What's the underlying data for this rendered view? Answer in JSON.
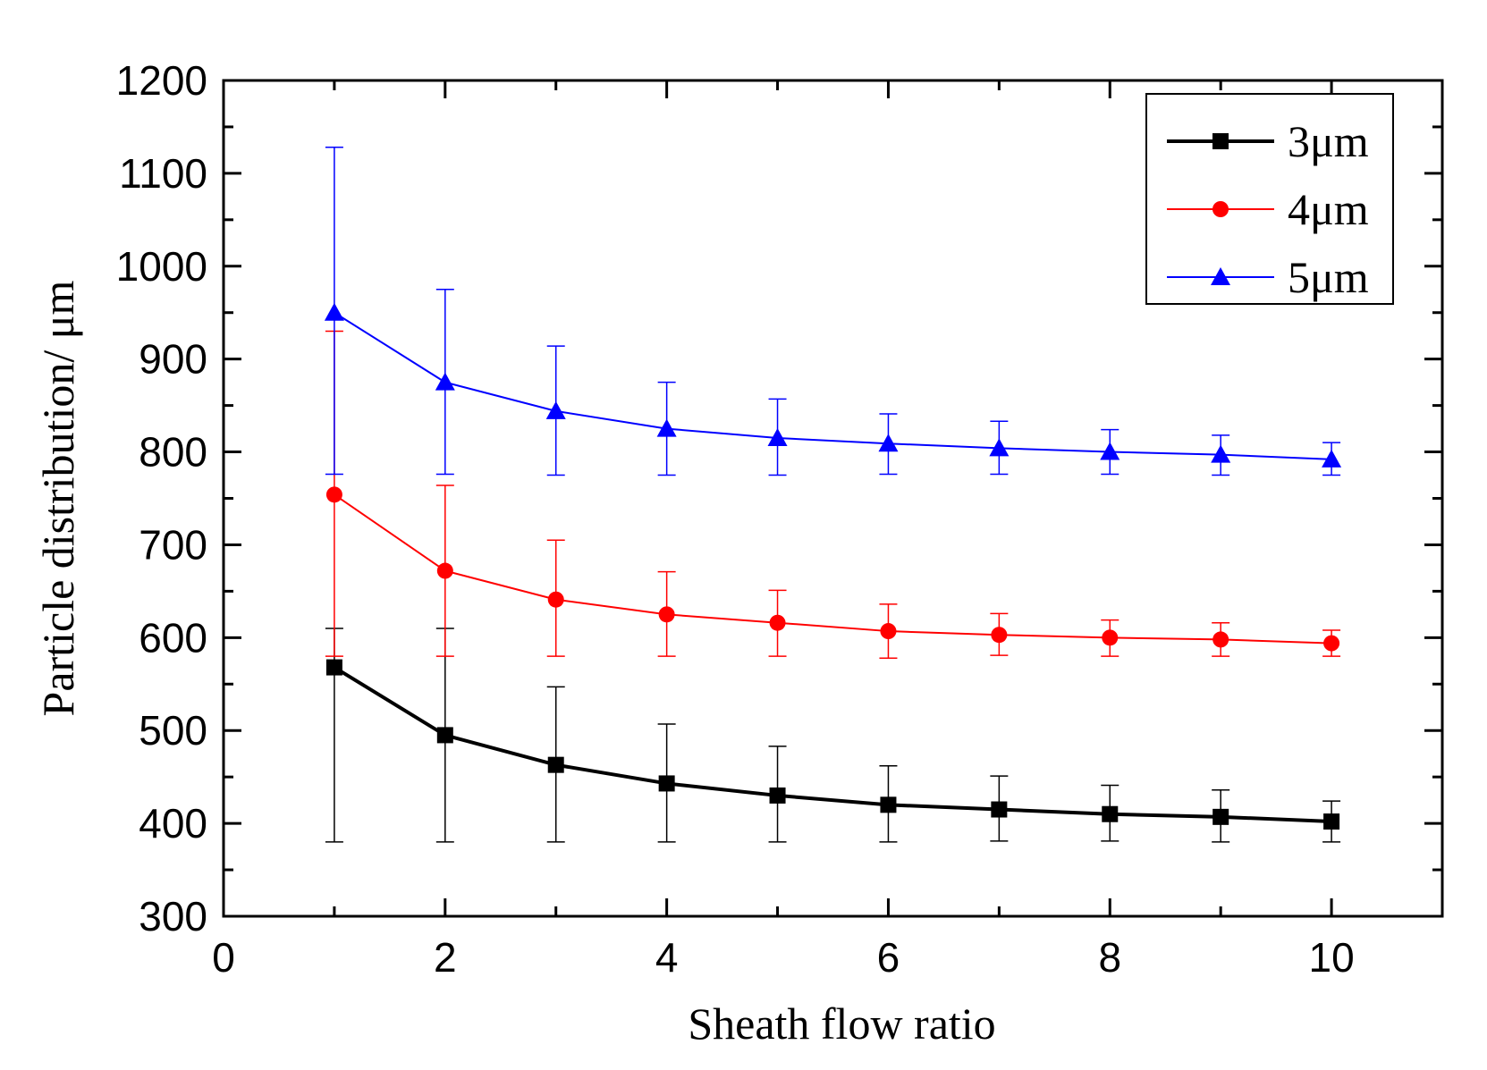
{
  "chart_data": {
    "type": "line",
    "title": "",
    "xlabel": "Sheath flow ratio",
    "ylabel": "Particle distribution/ μm",
    "xlim": [
      0,
      11
    ],
    "ylim": [
      300,
      1200
    ],
    "x_ticks": [
      0,
      2,
      4,
      6,
      8,
      10
    ],
    "y_ticks": [
      300,
      400,
      500,
      600,
      700,
      800,
      900,
      1000,
      1100,
      1200
    ],
    "x_tick_labels": [
      "0",
      "2",
      "4",
      "6",
      "8",
      "10"
    ],
    "y_tick_labels": [
      "300",
      "400",
      "500",
      "600",
      "700",
      "800",
      "900",
      "1000",
      "1100",
      "1200"
    ],
    "legend_position": "top-right",
    "x": [
      1,
      2,
      3,
      4,
      5,
      6,
      7,
      8,
      9,
      10
    ],
    "series": [
      {
        "name": "3μm",
        "color": "#000000",
        "marker": "square",
        "values": [
          568,
          495,
          463,
          443,
          430,
          420,
          415,
          410,
          407,
          402
        ],
        "err_low": [
          380,
          380,
          380,
          380,
          380,
          380,
          381,
          381,
          380,
          380
        ],
        "err_high": [
          610,
          610,
          547,
          507,
          483,
          462,
          451,
          441,
          436,
          424
        ]
      },
      {
        "name": "4μm",
        "color": "#ff0000",
        "marker": "circle",
        "values": [
          754,
          672,
          641,
          625,
          616,
          607,
          603,
          600,
          598,
          594
        ],
        "err_low": [
          580,
          580,
          580,
          580,
          580,
          578,
          581,
          580,
          580,
          580
        ],
        "err_high": [
          930,
          764,
          705,
          671,
          651,
          636,
          626,
          619,
          616,
          608
        ]
      },
      {
        "name": "5μm",
        "color": "#0000ff",
        "marker": "triangle",
        "values": [
          950,
          875,
          844,
          825,
          815,
          809,
          804,
          800,
          797,
          792
        ],
        "err_low": [
          776,
          776,
          775,
          775,
          775,
          776,
          776,
          776,
          775,
          775
        ],
        "err_high": [
          1128,
          975,
          914,
          875,
          857,
          841,
          833,
          824,
          818,
          810
        ]
      }
    ]
  }
}
